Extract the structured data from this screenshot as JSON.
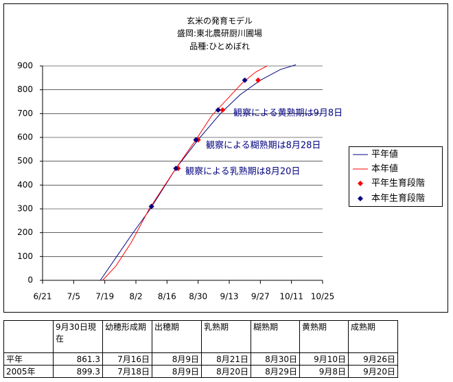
{
  "chart_data": {
    "type": "line",
    "title": "玄米の発育モデル",
    "subtitle": [
      "盛岡:東北農研厨川圃場",
      "品種:ひとめぼれ"
    ],
    "xlim": [
      172,
      298
    ],
    "xticks": [
      {
        "value": 172,
        "label": "6/21"
      },
      {
        "value": 186,
        "label": "7/5"
      },
      {
        "value": 200,
        "label": "7/19"
      },
      {
        "value": 214,
        "label": "8/2"
      },
      {
        "value": 228,
        "label": "8/16"
      },
      {
        "value": 242,
        "label": "8/30"
      },
      {
        "value": 256,
        "label": "9/13"
      },
      {
        "value": 270,
        "label": "9/27"
      },
      {
        "value": 284,
        "label": "10/11"
      },
      {
        "value": 298,
        "label": "10/25"
      }
    ],
    "ylim": [
      0,
      900
    ],
    "yticks": [
      0,
      100,
      200,
      300,
      400,
      500,
      600,
      700,
      800,
      900
    ],
    "grid": true,
    "series": [
      {
        "name": "平年値",
        "color": "#000080",
        "x": [
          198,
          205,
          212,
          220.5,
          232,
          242,
          252,
          261,
          270,
          279,
          286
        ],
        "values": [
          0,
          95,
          190,
          300,
          470,
          590,
          700,
          780,
          840,
          885,
          905
        ]
      },
      {
        "name": "本年値",
        "color": "#ff0000",
        "x": [
          199,
          205,
          212,
          220,
          232,
          241,
          248,
          255,
          262,
          268,
          273
        ],
        "values": [
          0,
          60,
          160,
          300,
          470,
          590,
          690,
          760,
          830,
          875,
          900
        ]
      }
    ],
    "markers": [
      {
        "name": "平年生育段階",
        "color": "#ff0000",
        "x": [
          221,
          233,
          242,
          253,
          269
        ],
        "values": [
          310,
          470,
          590,
          715,
          840
        ]
      },
      {
        "name": "本年生育段階",
        "color": "#000080",
        "x": [
          221,
          232,
          241,
          251,
          263
        ],
        "values": [
          310,
          470,
          590,
          715,
          840
        ]
      }
    ],
    "annotations": [
      "観察による黄熟期は9月8日",
      "観察による糊熟期は8月28日",
      "観察による乳熟期は8月20日"
    ]
  },
  "table": {
    "columns": [
      "9月30日現在",
      "幼穂形成期",
      "出穂期",
      "乳熟期",
      "糊熟期",
      "黄熟期",
      "成熟期"
    ],
    "rows": [
      [
        "平年",
        861.3,
        "7月16日",
        "8月9日",
        "8月21日",
        "8月30日",
        "9月10日",
        "9月26日"
      ],
      [
        "2005年",
        899.3,
        "7月18日",
        "8月9日",
        "8月20日",
        "8月29日",
        "9月8日",
        "9月20日"
      ]
    ]
  }
}
